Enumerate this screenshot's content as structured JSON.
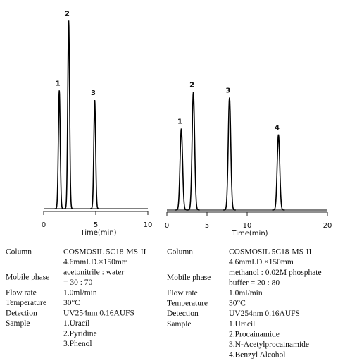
{
  "chart_data": [
    {
      "type": "chromatogram",
      "xlabel": "Time(min)",
      "xlim": [
        0,
        10
      ],
      "xticks": [
        0,
        5,
        10
      ],
      "ylim": [
        0,
        100
      ],
      "color": "#000000",
      "x": [
        1.5,
        2.4,
        4.9
      ],
      "values": [
        61,
        97,
        56
      ],
      "peak_labels": [
        "1",
        "2",
        "3"
      ]
    },
    {
      "type": "chromatogram",
      "xlabel": "Time(min)",
      "xlim": [
        0,
        20
      ],
      "xticks": [
        0,
        5,
        10,
        20
      ],
      "ylim": [
        0,
        100
      ],
      "color": "#000000",
      "x": [
        1.8,
        3.3,
        7.8,
        13.9
      ],
      "values": [
        42,
        61,
        58,
        39
      ],
      "peak_labels": [
        "1",
        "2",
        "3",
        "4"
      ]
    }
  ],
  "conditions": [
    [
      {
        "label": "Column",
        "lines": [
          "COSMOSIL 5C18-MS-II",
          "4.6mmI.D.×150mm"
        ]
      },
      {
        "label": "Mobile phase",
        "lines": [
          "acetonitrile : water",
          "= 30 : 70"
        ]
      },
      {
        "label": "Flow rate",
        "lines": [
          "1.0ml/min"
        ]
      },
      {
        "label": "Temperature",
        "lines": [
          "30°C"
        ]
      },
      {
        "label": "Detection",
        "lines": [
          "UV254nm 0.16AUFS"
        ]
      },
      {
        "label": "Sample",
        "lines": [
          "1.Uracil",
          "2.Pyridine",
          "3.Phenol"
        ]
      }
    ],
    [
      {
        "label": "Column",
        "lines": [
          "COSMOSIL 5C18-MS-II",
          "4.6mmI.D.×150mm"
        ]
      },
      {
        "label": "Mobile phase",
        "lines": [
          "methanol : 0.02M phosphate",
          "buffer = 20 : 80"
        ]
      },
      {
        "label": "Flow rate",
        "lines": [
          "1.0ml/min"
        ]
      },
      {
        "label": "Temperature",
        "lines": [
          "30°C"
        ]
      },
      {
        "label": "Detection",
        "lines": [
          "UV254nm 0.16AUFS"
        ]
      },
      {
        "label": "Sample",
        "lines": [
          "1.Uracil",
          "2.Procainamide",
          "3.N-Acetylprocainamide",
          "4.Benzyl Alcohol"
        ]
      }
    ]
  ]
}
